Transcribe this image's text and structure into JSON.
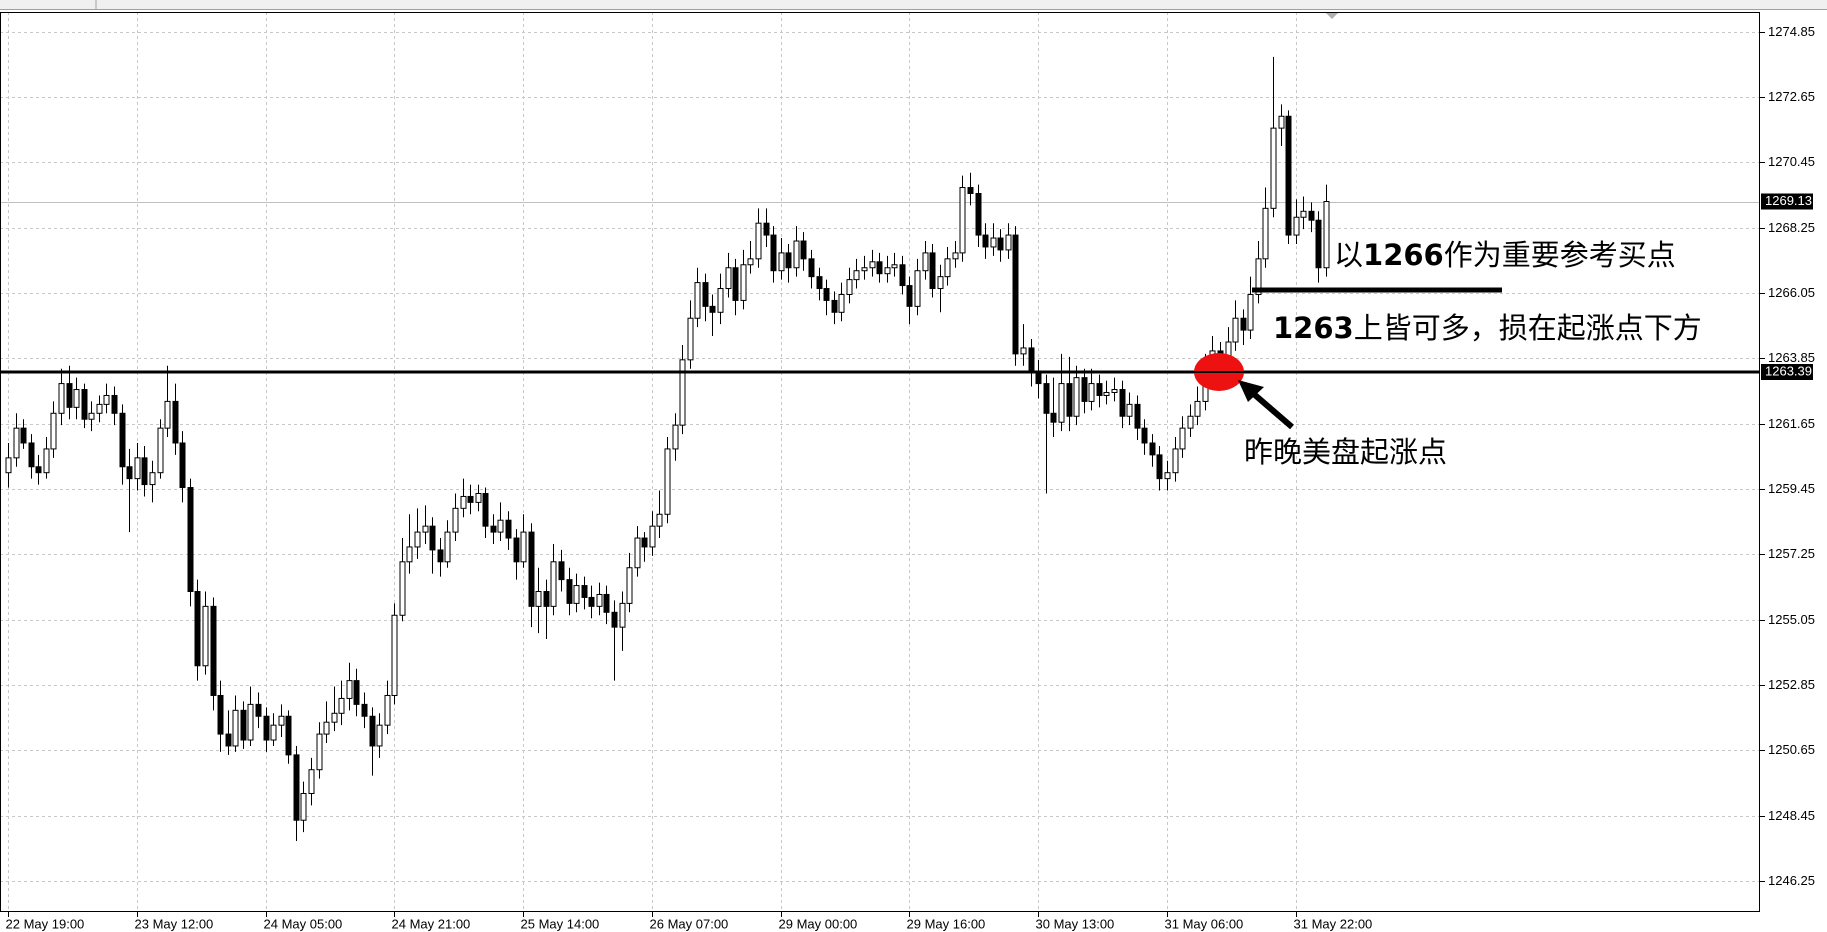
{
  "chart_data": {
    "type": "candlestick",
    "ylim": [
      1245.21,
      1275.51
    ],
    "yticks": [
      1274.85,
      1272.65,
      1270.45,
      1268.25,
      1266.05,
      1263.85,
      1261.65,
      1259.45,
      1257.25,
      1255.05,
      1252.85,
      1250.65,
      1248.45,
      1246.25
    ],
    "xticks": [
      {
        "value": 0,
        "label": "22 May 19:00"
      },
      {
        "value": 17,
        "label": "23 May 12:00"
      },
      {
        "value": 34,
        "label": "24 May 05:00"
      },
      {
        "value": 51,
        "label": "24 May 21:00"
      },
      {
        "value": 68,
        "label": "25 May 14:00"
      },
      {
        "value": 85,
        "label": "26 May 07:00"
      },
      {
        "value": 102,
        "label": "29 May 00:00"
      },
      {
        "value": 119,
        "label": "29 May 16:00"
      },
      {
        "value": 136,
        "label": "30 May 13:00"
      },
      {
        "value": 153,
        "label": "31 May 06:00"
      },
      {
        "value": 170,
        "label": "31 May 22:00"
      }
    ],
    "grid": true,
    "up_color": "#ffffff",
    "down_color": "#000000",
    "current_price": 1269.13,
    "hline": 1263.39,
    "annotations": [
      {
        "text": "以1266作为重要参考买点"
      },
      {
        "text": "1263上皆可多，损在起涨点下方"
      },
      {
        "text": "昨晚美盘起涨点"
      }
    ],
    "candles": [
      [
        1260.0,
        1261.0,
        1259.5,
        1260.5
      ],
      [
        1260.5,
        1262.0,
        1260.2,
        1261.5
      ],
      [
        1261.5,
        1261.8,
        1260.8,
        1261.0
      ],
      [
        1261.0,
        1261.3,
        1259.8,
        1260.2
      ],
      [
        1260.2,
        1260.6,
        1259.6,
        1260.0
      ],
      [
        1260.0,
        1261.2,
        1259.8,
        1260.8
      ],
      [
        1260.8,
        1262.4,
        1260.5,
        1262.0
      ],
      [
        1262.0,
        1263.5,
        1261.6,
        1263.0
      ],
      [
        1263.0,
        1263.6,
        1261.8,
        1262.2
      ],
      [
        1262.2,
        1263.2,
        1261.8,
        1262.8
      ],
      [
        1262.8,
        1263.0,
        1261.5,
        1261.8
      ],
      [
        1261.8,
        1262.4,
        1261.4,
        1262.0
      ],
      [
        1262.0,
        1262.6,
        1261.7,
        1262.3
      ],
      [
        1262.3,
        1263.0,
        1262.0,
        1262.6
      ],
      [
        1262.6,
        1262.9,
        1261.6,
        1262.0
      ],
      [
        1262.0,
        1262.3,
        1259.6,
        1260.2
      ],
      [
        1260.2,
        1260.8,
        1258.0,
        1259.8
      ],
      [
        1259.8,
        1261.0,
        1259.4,
        1260.5
      ],
      [
        1260.5,
        1260.9,
        1259.2,
        1259.6
      ],
      [
        1259.6,
        1260.4,
        1259.0,
        1260.0
      ],
      [
        1260.0,
        1261.8,
        1259.8,
        1261.5
      ],
      [
        1261.5,
        1263.6,
        1261.2,
        1262.4
      ],
      [
        1262.4,
        1263.0,
        1260.6,
        1261.0
      ],
      [
        1261.0,
        1261.4,
        1259.0,
        1259.5
      ],
      [
        1259.5,
        1259.8,
        1255.5,
        1256.0
      ],
      [
        1256.0,
        1256.4,
        1253.0,
        1253.5
      ],
      [
        1253.5,
        1256.0,
        1253.2,
        1255.5
      ],
      [
        1255.5,
        1255.8,
        1252.0,
        1252.5
      ],
      [
        1252.5,
        1253.0,
        1250.6,
        1251.2
      ],
      [
        1251.2,
        1252.0,
        1250.5,
        1250.8
      ],
      [
        1250.8,
        1252.5,
        1250.6,
        1252.0
      ],
      [
        1252.0,
        1252.3,
        1250.7,
        1251.0
      ],
      [
        1251.0,
        1252.8,
        1250.8,
        1252.2
      ],
      [
        1252.2,
        1252.6,
        1251.4,
        1251.8
      ],
      [
        1251.8,
        1252.1,
        1250.6,
        1251.0
      ],
      [
        1251.0,
        1251.9,
        1250.8,
        1251.5
      ],
      [
        1251.5,
        1252.2,
        1251.1,
        1251.8
      ],
      [
        1251.8,
        1252.0,
        1250.2,
        1250.5
      ],
      [
        1250.5,
        1250.8,
        1247.6,
        1248.3
      ],
      [
        1248.3,
        1249.6,
        1247.9,
        1249.2
      ],
      [
        1249.2,
        1250.4,
        1248.8,
        1250.0
      ],
      [
        1250.0,
        1251.6,
        1249.7,
        1251.2
      ],
      [
        1251.2,
        1252.3,
        1250.9,
        1251.6
      ],
      [
        1251.6,
        1252.8,
        1251.3,
        1251.9
      ],
      [
        1251.9,
        1253.0,
        1251.5,
        1252.4
      ],
      [
        1252.4,
        1253.6,
        1252.0,
        1253.0
      ],
      [
        1253.0,
        1253.4,
        1251.8,
        1252.2
      ],
      [
        1252.2,
        1252.6,
        1251.4,
        1251.8
      ],
      [
        1251.8,
        1252.1,
        1249.8,
        1250.8
      ],
      [
        1250.8,
        1251.9,
        1250.4,
        1251.5
      ],
      [
        1251.5,
        1253.0,
        1251.2,
        1252.5
      ],
      [
        1252.5,
        1255.6,
        1252.2,
        1255.2
      ],
      [
        1255.2,
        1257.8,
        1255.0,
        1257.0
      ],
      [
        1257.0,
        1258.6,
        1256.6,
        1257.5
      ],
      [
        1257.5,
        1258.8,
        1257.1,
        1258.0
      ],
      [
        1258.0,
        1258.9,
        1257.6,
        1258.2
      ],
      [
        1258.2,
        1258.5,
        1256.6,
        1257.4
      ],
      [
        1257.4,
        1257.8,
        1256.5,
        1257.0
      ],
      [
        1257.0,
        1258.4,
        1256.8,
        1258.0
      ],
      [
        1258.0,
        1259.3,
        1257.7,
        1258.8
      ],
      [
        1258.8,
        1259.8,
        1258.5,
        1259.2
      ],
      [
        1259.2,
        1259.6,
        1258.6,
        1259.0
      ],
      [
        1259.0,
        1259.6,
        1258.7,
        1259.3
      ],
      [
        1259.3,
        1259.5,
        1257.8,
        1258.2
      ],
      [
        1258.2,
        1258.6,
        1257.6,
        1258.0
      ],
      [
        1258.0,
        1259.0,
        1257.7,
        1258.4
      ],
      [
        1258.4,
        1258.7,
        1257.4,
        1257.8
      ],
      [
        1257.8,
        1258.1,
        1256.4,
        1257.0
      ],
      [
        1257.0,
        1258.6,
        1256.8,
        1258.0
      ],
      [
        1258.0,
        1258.3,
        1254.8,
        1255.5
      ],
      [
        1255.5,
        1256.8,
        1254.6,
        1256.0
      ],
      [
        1256.0,
        1256.4,
        1254.4,
        1255.5
      ],
      [
        1255.5,
        1257.6,
        1255.2,
        1257.0
      ],
      [
        1257.0,
        1257.4,
        1256.0,
        1256.4
      ],
      [
        1256.4,
        1256.8,
        1255.2,
        1255.6
      ],
      [
        1255.6,
        1256.6,
        1255.3,
        1256.2
      ],
      [
        1256.2,
        1256.5,
        1255.4,
        1255.8
      ],
      [
        1255.8,
        1256.2,
        1255.1,
        1255.5
      ],
      [
        1255.5,
        1256.3,
        1255.2,
        1255.9
      ],
      [
        1255.9,
        1256.2,
        1254.9,
        1255.3
      ],
      [
        1255.3,
        1255.7,
        1253.0,
        1254.8
      ],
      [
        1254.8,
        1256.0,
        1254.0,
        1255.6
      ],
      [
        1255.6,
        1257.3,
        1255.3,
        1256.8
      ],
      [
        1256.8,
        1258.2,
        1256.5,
        1257.8
      ],
      [
        1257.8,
        1258.0,
        1257.0,
        1257.5
      ],
      [
        1257.5,
        1258.7,
        1257.2,
        1258.2
      ],
      [
        1258.2,
        1259.4,
        1257.8,
        1258.6
      ],
      [
        1258.6,
        1261.2,
        1258.3,
        1260.8
      ],
      [
        1260.8,
        1262.0,
        1260.4,
        1261.6
      ],
      [
        1261.6,
        1264.3,
        1261.3,
        1263.8
      ],
      [
        1263.8,
        1265.8,
        1263.5,
        1265.2
      ],
      [
        1265.2,
        1266.9,
        1264.9,
        1266.4
      ],
      [
        1266.4,
        1266.7,
        1265.1,
        1265.6
      ],
      [
        1265.6,
        1266.0,
        1264.6,
        1265.4
      ],
      [
        1265.4,
        1266.7,
        1265.0,
        1266.2
      ],
      [
        1266.2,
        1267.4,
        1265.9,
        1266.9
      ],
      [
        1266.9,
        1267.2,
        1265.3,
        1265.8
      ],
      [
        1265.8,
        1267.5,
        1265.5,
        1267.0
      ],
      [
        1267.0,
        1267.8,
        1266.7,
        1267.2
      ],
      [
        1267.2,
        1268.9,
        1266.9,
        1268.4
      ],
      [
        1268.4,
        1268.9,
        1267.6,
        1268.0
      ],
      [
        1268.0,
        1268.3,
        1266.4,
        1266.8
      ],
      [
        1266.8,
        1267.9,
        1266.5,
        1267.4
      ],
      [
        1267.4,
        1267.7,
        1266.4,
        1266.9
      ],
      [
        1266.9,
        1268.3,
        1266.6,
        1267.8
      ],
      [
        1267.8,
        1268.1,
        1266.8,
        1267.2
      ],
      [
        1267.2,
        1267.5,
        1266.2,
        1266.6
      ],
      [
        1266.6,
        1266.9,
        1265.8,
        1266.2
      ],
      [
        1266.2,
        1266.5,
        1265.3,
        1265.8
      ],
      [
        1265.8,
        1266.1,
        1265.0,
        1265.4
      ],
      [
        1265.4,
        1266.4,
        1265.1,
        1266.0
      ],
      [
        1266.0,
        1266.9,
        1265.7,
        1266.5
      ],
      [
        1266.5,
        1267.2,
        1266.2,
        1266.8
      ],
      [
        1266.8,
        1267.3,
        1266.5,
        1266.9
      ],
      [
        1266.9,
        1267.5,
        1266.6,
        1267.1
      ],
      [
        1267.1,
        1267.4,
        1266.4,
        1266.7
      ],
      [
        1266.7,
        1267.3,
        1266.4,
        1266.9
      ],
      [
        1266.9,
        1267.4,
        1266.6,
        1267.0
      ],
      [
        1267.0,
        1267.3,
        1266.0,
        1266.3
      ],
      [
        1266.3,
        1266.6,
        1265.0,
        1265.6
      ],
      [
        1265.6,
        1267.2,
        1265.3,
        1266.8
      ],
      [
        1266.8,
        1267.8,
        1266.5,
        1267.4
      ],
      [
        1267.4,
        1267.7,
        1265.9,
        1266.2
      ],
      [
        1266.2,
        1267.0,
        1265.4,
        1266.6
      ],
      [
        1266.6,
        1267.6,
        1266.3,
        1267.2
      ],
      [
        1267.2,
        1267.8,
        1266.9,
        1267.4
      ],
      [
        1267.4,
        1270.0,
        1267.1,
        1269.6
      ],
      [
        1269.6,
        1270.1,
        1269.0,
        1269.4
      ],
      [
        1269.4,
        1269.7,
        1267.6,
        1268.0
      ],
      [
        1268.0,
        1268.4,
        1267.2,
        1267.6
      ],
      [
        1267.6,
        1268.4,
        1267.3,
        1267.9
      ],
      [
        1267.9,
        1268.2,
        1267.1,
        1267.5
      ],
      [
        1267.5,
        1268.4,
        1267.2,
        1268.0
      ],
      [
        1268.0,
        1268.3,
        1263.6,
        1264.0
      ],
      [
        1264.0,
        1265.0,
        1263.6,
        1264.2
      ],
      [
        1264.2,
        1264.5,
        1262.9,
        1263.4
      ],
      [
        1263.4,
        1263.8,
        1262.5,
        1263.0
      ],
      [
        1263.0,
        1263.3,
        1259.3,
        1262.0
      ],
      [
        1262.0,
        1263.2,
        1261.2,
        1261.7
      ],
      [
        1261.7,
        1264.0,
        1261.4,
        1263.0
      ],
      [
        1263.0,
        1263.9,
        1261.4,
        1261.9
      ],
      [
        1261.9,
        1263.6,
        1261.6,
        1263.2
      ],
      [
        1263.2,
        1263.5,
        1262.0,
        1262.4
      ],
      [
        1262.4,
        1263.5,
        1262.1,
        1263.0
      ],
      [
        1263.0,
        1263.3,
        1262.2,
        1262.6
      ],
      [
        1262.6,
        1263.1,
        1262.3,
        1262.7
      ],
      [
        1262.7,
        1263.2,
        1262.4,
        1262.8
      ],
      [
        1262.8,
        1263.1,
        1261.5,
        1261.9
      ],
      [
        1261.9,
        1262.7,
        1261.6,
        1262.3
      ],
      [
        1262.3,
        1262.6,
        1261.1,
        1261.5
      ],
      [
        1261.5,
        1261.8,
        1260.6,
        1261.0
      ],
      [
        1261.0,
        1261.3,
        1260.2,
        1260.6
      ],
      [
        1260.6,
        1260.9,
        1259.4,
        1259.8
      ],
      [
        1259.8,
        1260.4,
        1259.4,
        1260.0
      ],
      [
        1260.0,
        1261.2,
        1259.7,
        1260.8
      ],
      [
        1260.8,
        1261.9,
        1260.5,
        1261.5
      ],
      [
        1261.5,
        1262.3,
        1261.2,
        1261.9
      ],
      [
        1261.9,
        1262.9,
        1261.6,
        1262.4
      ],
      [
        1262.4,
        1264.0,
        1262.1,
        1263.5
      ],
      [
        1263.5,
        1264.6,
        1263.2,
        1264.1
      ],
      [
        1264.1,
        1264.4,
        1263.3,
        1263.8
      ],
      [
        1263.8,
        1264.9,
        1263.5,
        1264.4
      ],
      [
        1264.4,
        1265.8,
        1264.1,
        1265.2
      ],
      [
        1265.2,
        1265.5,
        1264.3,
        1264.8
      ],
      [
        1264.8,
        1266.6,
        1264.5,
        1266.0
      ],
      [
        1266.0,
        1267.8,
        1265.7,
        1267.2
      ],
      [
        1267.2,
        1269.6,
        1266.9,
        1268.9
      ],
      [
        1268.9,
        1274.0,
        1268.6,
        1271.6
      ],
      [
        1271.6,
        1272.4,
        1271.0,
        1272.0
      ],
      [
        1272.0,
        1272.2,
        1267.7,
        1268.0
      ],
      [
        1268.0,
        1269.2,
        1267.7,
        1268.6
      ],
      [
        1268.6,
        1269.3,
        1268.2,
        1268.8
      ],
      [
        1268.8,
        1269.1,
        1268.1,
        1268.5
      ],
      [
        1268.5,
        1268.8,
        1266.4,
        1266.9
      ],
      [
        1266.9,
        1269.7,
        1266.6,
        1269.13
      ]
    ]
  }
}
